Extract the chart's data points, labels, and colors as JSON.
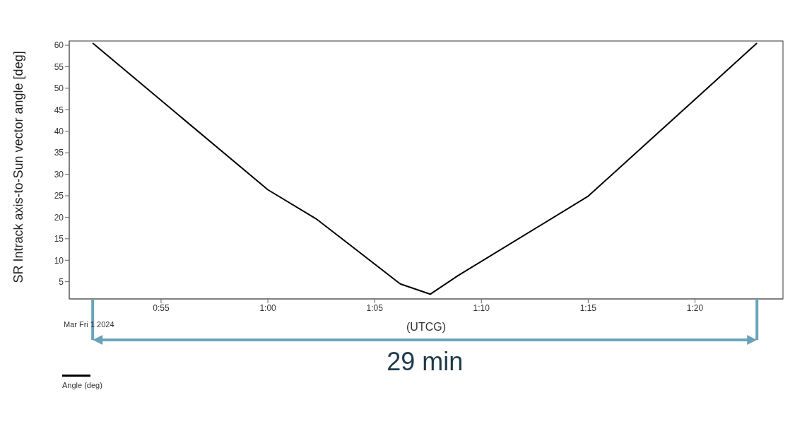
{
  "chart_data": {
    "type": "line",
    "ylabel": "SR Intrack axis-to-Sun vector angle [deg]",
    "xlabel": "(UTCG)",
    "annotations": [
      "Mar Fri 1 2024",
      "29 min"
    ],
    "x": [
      0.8633,
      1.0,
      1.0383,
      1.1033,
      1.1267,
      1.1483,
      1.25,
      1.3817
    ],
    "series": [
      {
        "name": "Angle (deg)",
        "color": "#000000",
        "values": [
          60.5,
          26.4,
          19.5,
          4.5,
          2.1,
          6.4,
          24.9,
          60.5
        ]
      }
    ],
    "xlim": [
      0.845,
      1.402
    ],
    "xticks": [
      {
        "value": 0.91667,
        "label": "0:55"
      },
      {
        "value": 1.0,
        "label": "1:00"
      },
      {
        "value": 1.08333,
        "label": "1:05"
      },
      {
        "value": 1.16667,
        "label": "1:10"
      },
      {
        "value": 1.25,
        "label": "1:15"
      },
      {
        "value": 1.33333,
        "label": "1:20"
      }
    ],
    "ylim": [
      1,
      61
    ],
    "yticks": [
      5,
      10,
      15,
      20,
      25,
      30,
      35,
      40,
      45,
      50,
      55,
      60
    ],
    "grid": false,
    "legend": "bottom left",
    "marker": "none",
    "line_style": "solid"
  }
}
